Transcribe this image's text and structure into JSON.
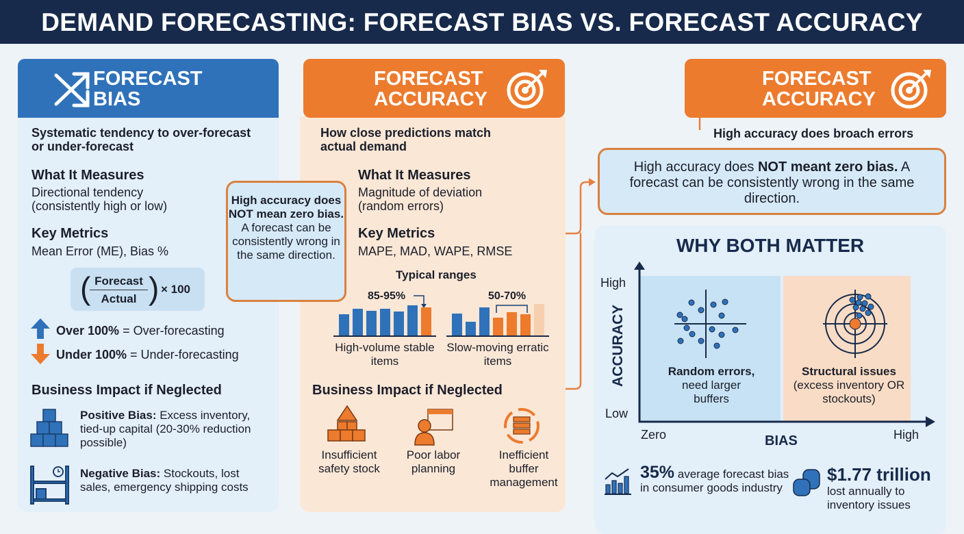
{
  "title": "DEMAND FORECASTING: FORECAST BIAS VS. FORECAST ACCURACY",
  "colors": {
    "navy": "#172a4b",
    "blue": "#2f72b9",
    "orange": "#ec7b2e",
    "light_blue": "#e3eff9",
    "peach": "#fbe7d6"
  },
  "bias": {
    "icon": "crossing-arrows-icon",
    "title_1": "FORECAST",
    "title_2": "BIAS",
    "definition": "Systematic tendency to over-forecast or under-forecast",
    "measures_heading": "What It Measures",
    "measures_text": "Directional tendency (consistently high or low)",
    "metrics_heading": "Key Metrics",
    "metrics_text": "Mean Error (ME), Bias %",
    "formula": {
      "numerator": "Forecast",
      "denominator": "Actual",
      "multiplier": "× 100"
    },
    "over_bold": "Over 100%",
    "over_text": " = Over-forecasting",
    "under_bold": "Under 100%",
    "under_text": " = Under-forecasting",
    "impact_heading": "Business Impact if Neglected",
    "positive_bold": "Positive Bias:",
    "positive_text": " Excess inventory, tied-up capital (20-30% reduction possible)",
    "negative_bold": "Negative Bias:",
    "negative_text": " Stockouts, lost sales, emergency shipping costs"
  },
  "middle_callout": {
    "bold": "High accuracy does NOT mean zero bias.",
    "text": " A forecast can be consistently wrong in the same direction."
  },
  "accuracy": {
    "icon": "target-icon",
    "title_1": "FORECAST",
    "title_2": "ACCURACY",
    "definition": "How close predictions match actual demand",
    "measures_heading": "What It Measures",
    "measures_text": "Magnitude of deviation (random errors)",
    "metrics_heading": "Key Metrics",
    "metrics_text": "MAPE, MAD, WAPE, RMSE",
    "ranges_heading": "Typical ranges",
    "range_high": {
      "label": "85-95%",
      "caption": "High-volume stable items",
      "bars": [
        31,
        39,
        36,
        39,
        35,
        44,
        41
      ],
      "highlight": [
        6
      ]
    },
    "range_slow": {
      "label": "50-70%",
      "caption": "Slow-moving erratic items",
      "bars": [
        32,
        20,
        41,
        26,
        34,
        31,
        46
      ],
      "highlight": [
        3,
        4,
        5
      ],
      "faded": [
        6
      ]
    },
    "impact_heading": "Business Impact if Neglected",
    "impacts": [
      {
        "icon": "warning-boxes-icon",
        "label": "Insufficient safety stock"
      },
      {
        "icon": "worker-calendar-icon",
        "label": "Poor labor planning"
      },
      {
        "icon": "cycle-stack-icon",
        "label": "Inefficient buffer management"
      }
    ]
  },
  "right": {
    "title_1": "FORECAST",
    "title_2": "ACCURACY",
    "subtitle": "High accuracy does broach errors",
    "callout_pre": "High accuracy does ",
    "callout_bold": "NOT meant zero bias.",
    "callout_text": " A forecast can be consistently wrong in the same direction.",
    "why_title": "WHY BOTH MATTER",
    "quadrant": {
      "y_label": "ACCURACY",
      "y_high": "High",
      "y_low": "Low",
      "x_label": "BIAS",
      "x_zero": "Zero",
      "x_high": "High",
      "left_bold": "Random errors,",
      "left_text": "need larger buffers",
      "right_bold": "Structural issues",
      "right_text": "(excess inventory OR stockouts)"
    },
    "stat1": {
      "value": "35%",
      "text": " average forecast bias in consumer goods industry"
    },
    "stat2": {
      "value": "$1.77 trillion",
      "text": "lost annually to inventory issues"
    }
  }
}
